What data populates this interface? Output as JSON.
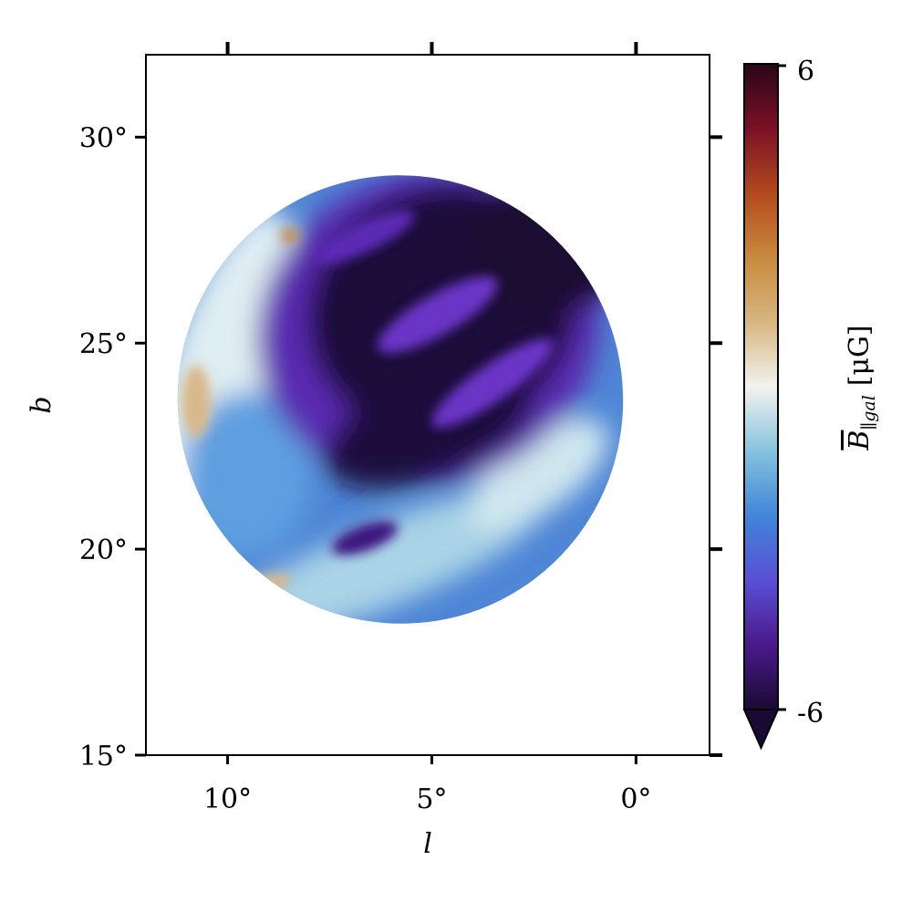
{
  "chart_data": {
    "type": "heatmap",
    "title": "",
    "xlabel": "l",
    "ylabel": "b",
    "xlim": [
      12,
      -1.8
    ],
    "ylim": [
      15,
      32
    ],
    "x_ticks": [
      {
        "value": 10,
        "label": "10°"
      },
      {
        "value": 5,
        "label": "5°"
      },
      {
        "value": 0,
        "label": "0°"
      }
    ],
    "y_ticks": [
      {
        "value": 15,
        "label": "15°"
      },
      {
        "value": 20,
        "label": "20°"
      },
      {
        "value": 25,
        "label": "25°"
      },
      {
        "value": 30,
        "label": "30°"
      }
    ],
    "grid": false,
    "region": {
      "shape": "ellipse",
      "description_units": "degrees",
      "center_l": 5.6,
      "center_b": 23.6,
      "extent_l": [
        0.3,
        11.2
      ],
      "extent_b": [
        18.1,
        29.1
      ]
    },
    "colorbar": {
      "label_main": "B",
      "label_sub": "∥gal",
      "label_units": "[μG]",
      "min": -6,
      "max": 6,
      "tick_labels": {
        "min": "-6",
        "max": "6"
      },
      "extend": "min",
      "colormap_stops": [
        {
          "value": -6,
          "color": "#1a0a33"
        },
        {
          "value": -4.8,
          "color": "#4a1a8a"
        },
        {
          "value": -3.6,
          "color": "#5b4fd6"
        },
        {
          "value": -2.4,
          "color": "#3f86d8"
        },
        {
          "value": -1.2,
          "color": "#86c2de"
        },
        {
          "value": 0,
          "color": "#f2f2ee"
        },
        {
          "value": 1.2,
          "color": "#d7b680"
        },
        {
          "value": 2.4,
          "color": "#c88a3e"
        },
        {
          "value": 3.6,
          "color": "#b3491e"
        },
        {
          "value": 4.8,
          "color": "#7a1126"
        },
        {
          "value": 6,
          "color": "#2a0618"
        }
      ]
    },
    "features": [
      {
        "name": "dark core",
        "value": -6,
        "l": 4.2,
        "b": 24.6
      },
      {
        "name": "purple filament",
        "value": -4.6,
        "l": 3.0,
        "b": 23.8
      },
      {
        "name": "blue rim",
        "value": -2.6,
        "l": 8.5,
        "b": 21.0
      },
      {
        "name": "pale edge",
        "value": -0.6,
        "l": 10.8,
        "b": 23.5
      },
      {
        "name": "warm patch",
        "value": 1.8,
        "l": 9.0,
        "b": 18.8
      }
    ]
  }
}
